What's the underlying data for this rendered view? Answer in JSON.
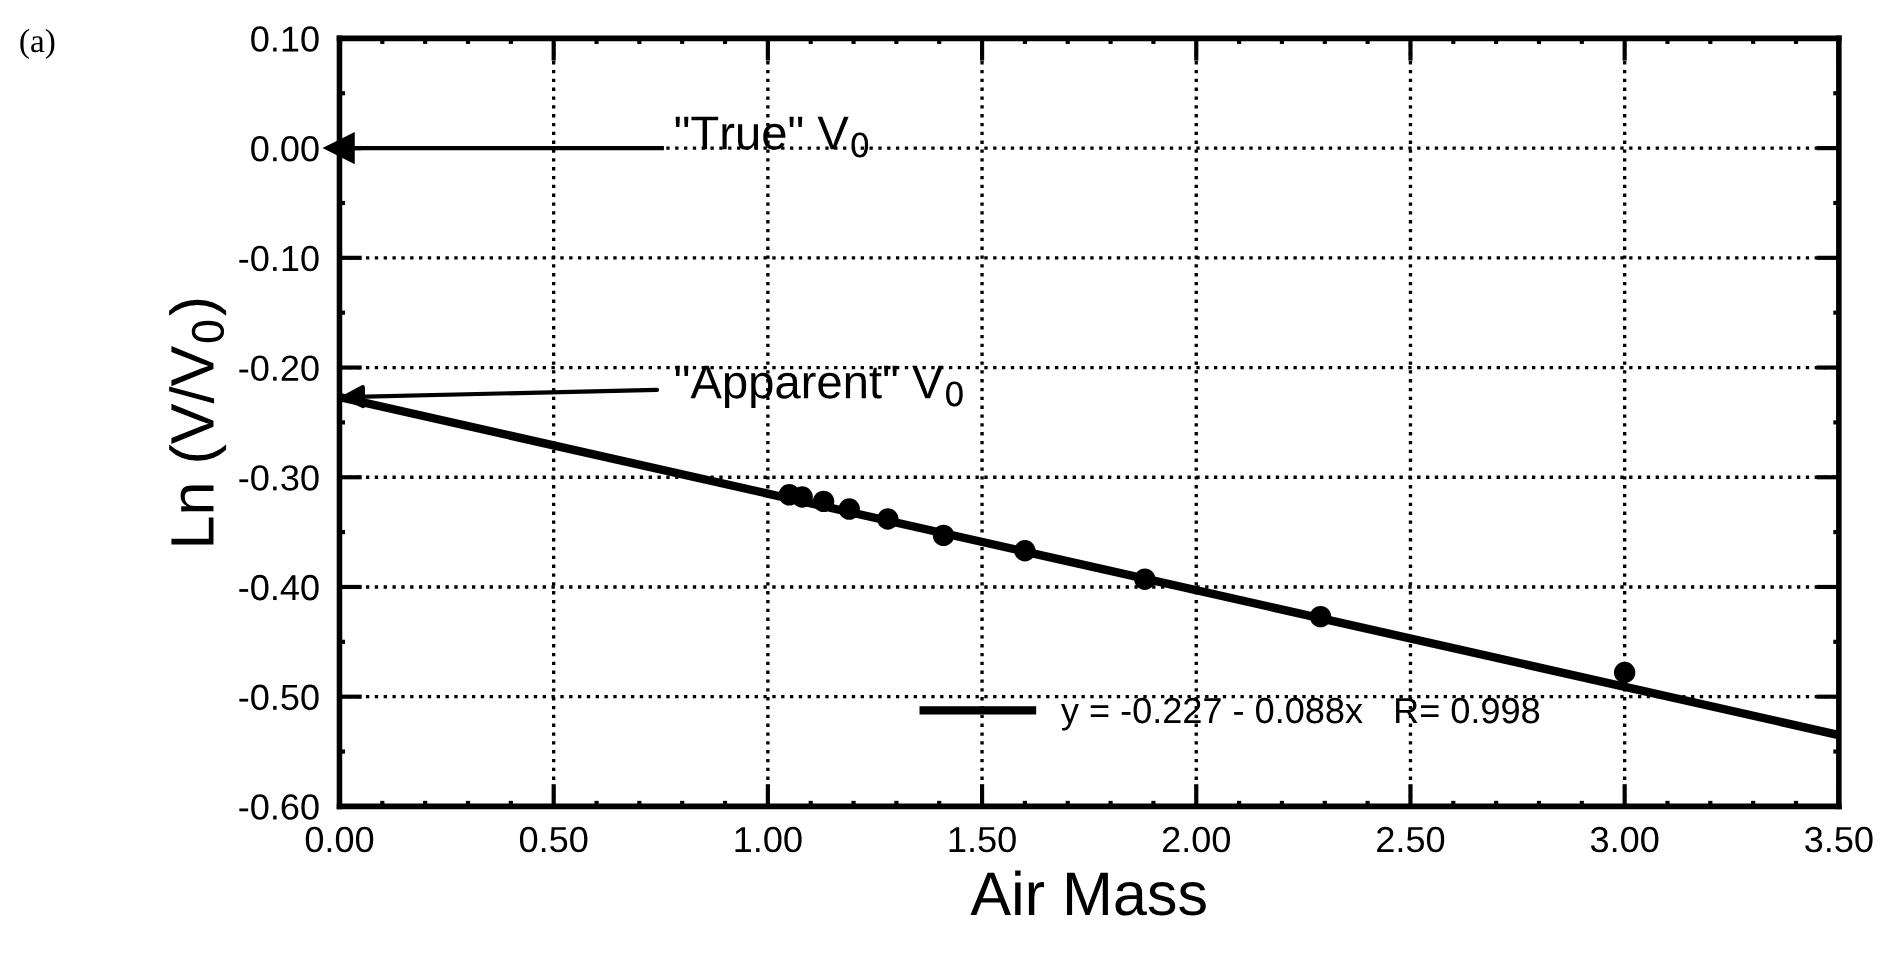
{
  "chart_data": {
    "type": "scatter",
    "xlabel": "Air Mass",
    "ylabel": "Ln (V/V$_{0}$)",
    "xlim": [
      0,
      3.5
    ],
    "xticks": [
      {
        "value": 0,
        "label": "0.00"
      },
      {
        "value": 0.5,
        "label": "0.50"
      },
      {
        "value": 1,
        "label": "1.00"
      },
      {
        "value": 1.5,
        "label": "1.50"
      },
      {
        "value": 2,
        "label": "2.00"
      },
      {
        "value": 2.5,
        "label": "2.50"
      },
      {
        "value": 3,
        "label": "3.00"
      },
      {
        "value": 3.5,
        "label": "3.50"
      }
    ],
    "ylim": [
      -0.6,
      0.1
    ],
    "yticks": [
      {
        "value": -0.6,
        "label": "-0.60"
      },
      {
        "value": -0.5,
        "label": "-0.50"
      },
      {
        "value": -0.4,
        "label": "-0.40"
      },
      {
        "value": -0.3,
        "label": "-0.30"
      },
      {
        "value": -0.2,
        "label": "-0.20"
      },
      {
        "value": -0.1,
        "label": "-0.10"
      },
      {
        "value": 0,
        "label": "0.00"
      },
      {
        "value": 0.1,
        "label": "0.10"
      }
    ],
    "series": [
      {
        "color": "#000000",
        "marker": "circle",
        "x": [
          1.05,
          1.08,
          1.13,
          1.19,
          1.28,
          1.41,
          1.6,
          1.88,
          2.29,
          3.0
        ],
        "values": [
          -0.316,
          -0.318,
          -0.322,
          -0.329,
          -0.338,
          -0.353,
          -0.367,
          -0.393,
          -0.427,
          -0.478
        ]
      },
      {
        "type": "line",
        "name": "y = -0.227 - 0.088x   R= 0.998",
        "color": "#000000",
        "line_style": "solid",
        "x": [
          0,
          3.5
        ],
        "values": [
          -0.227,
          -0.535
        ]
      }
    ],
    "ref_lines": [
      {
        "axis": "y",
        "value": 0,
        "label": "\"True\" V$_{0}$"
      }
    ],
    "annotations": [
      "(a)",
      {
        "text": "\"Apparent\" V$_{0}$",
        "x": 0,
        "y": -0.227
      }
    ],
    "grid": true,
    "legend": "bottom"
  }
}
